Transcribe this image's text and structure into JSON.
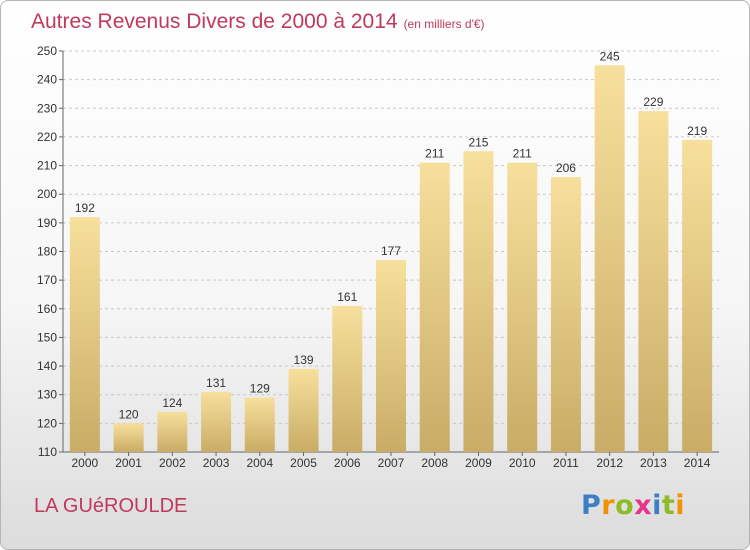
{
  "header": {
    "title": "Autres Revenus Divers de 2000 à 2014",
    "subtitle": "(en milliers d'€)"
  },
  "footer": {
    "commune": "LA GUéROULDE",
    "logo": {
      "letters": [
        "P",
        "r",
        "o",
        "x",
        "i",
        "t",
        "i"
      ],
      "colors": [
        "#3b7fc4",
        "#f39200",
        "#8dbb2a",
        "#e5348b",
        "#3b7fc4",
        "#8dbb2a",
        "#f39200"
      ]
    }
  },
  "colors": {
    "bar_light": "#f7e09c",
    "bar_dark": "#c9ac66",
    "grid": "#c8c8c8",
    "accent": "#c0395b"
  },
  "chart_data": {
    "type": "bar",
    "categories": [
      "2000",
      "2001",
      "2002",
      "2003",
      "2004",
      "2005",
      "2006",
      "2007",
      "2008",
      "2009",
      "2010",
      "2011",
      "2012",
      "2013",
      "2014"
    ],
    "values": [
      192,
      120,
      124,
      131,
      129,
      139,
      161,
      177,
      211,
      215,
      211,
      206,
      245,
      229,
      219
    ],
    "title": "Autres Revenus Divers de 2000 à 2014",
    "xlabel": "",
    "ylabel": "",
    "ylim": [
      110,
      250
    ],
    "yticks": [
      110,
      120,
      130,
      140,
      150,
      160,
      170,
      180,
      190,
      200,
      210,
      220,
      230,
      240,
      250
    ],
    "grid": "horizontal dashed",
    "legend": "none"
  }
}
